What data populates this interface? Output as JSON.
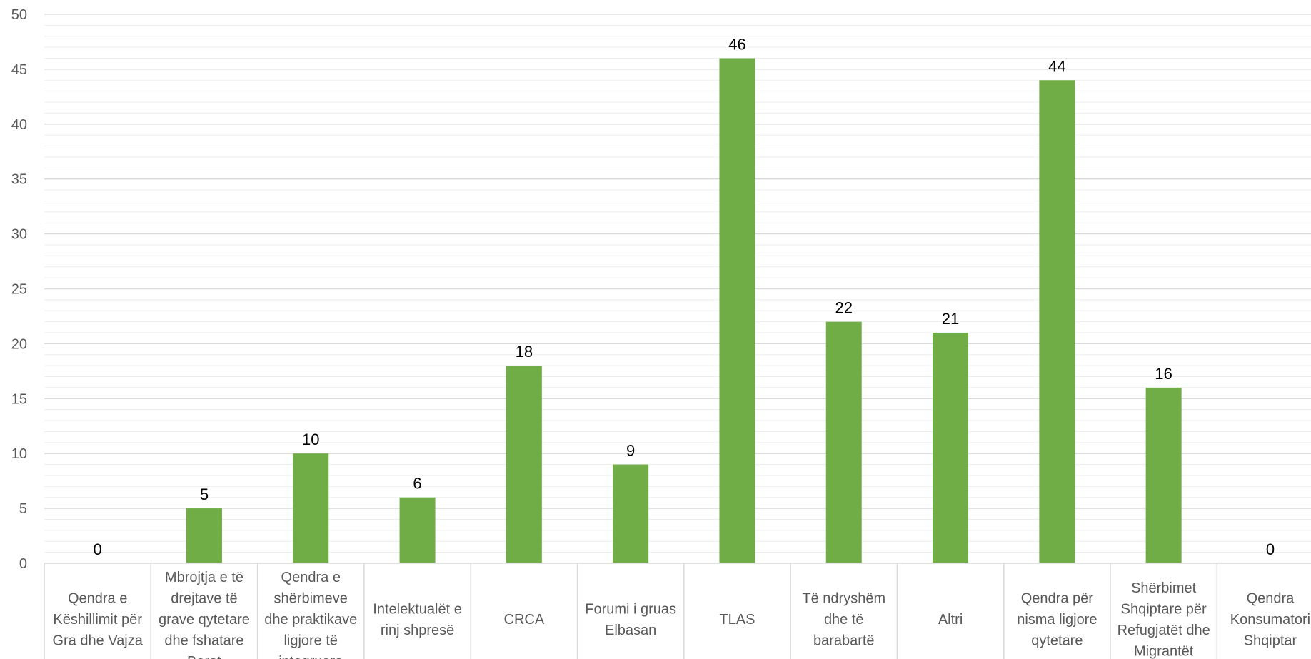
{
  "chart_data": {
    "type": "bar",
    "categories": [
      "Qendra e Këshillimit për Gra dhe Vajza",
      "Mbrojtja e të drejtave të grave qytetare dhe fshatare Berat",
      "Qendra e shërbimeve dhe praktikave ligjore të integruara",
      "Intelektualët e rinj shpresë",
      "CRCA",
      "Forumi i gruas Elbasan",
      "TLAS",
      "Të ndryshëm dhe të barabartë",
      "Altri",
      "Qendra për nisma ligjore qytetare",
      "Shërbimet Shqiptare për Refugjatët dhe Migrantët",
      "Qendra Konsumatori Shqiptar"
    ],
    "category_lines": [
      [
        "Qendra e",
        "Këshillimit për",
        "Gra dhe Vajza"
      ],
      [
        "Mbrojtja e të",
        "drejtave të",
        "grave qytetare",
        "dhe fshatare",
        "Berat"
      ],
      [
        "Qendra e",
        "shërbimeve",
        "dhe praktikave",
        "ligjore të",
        "integruara"
      ],
      [
        "Intelektualët e",
        "rinj shpresë"
      ],
      [
        "CRCA"
      ],
      [
        "Forumi i gruas",
        "Elbasan"
      ],
      [
        "TLAS"
      ],
      [
        "Të ndryshëm",
        "dhe të",
        "barabartë"
      ],
      [
        "Altri"
      ],
      [
        "Qendra për",
        "nisma ligjore",
        "qytetare"
      ],
      [
        "Shërbimet",
        "Shqiptare për",
        "Refugjatët dhe",
        "Migrantët"
      ],
      [
        "Qendra",
        "Konsumatori",
        "Shqiptar"
      ]
    ],
    "values": [
      0,
      5,
      10,
      6,
      18,
      9,
      46,
      22,
      21,
      44,
      16,
      0
    ],
    "data_labels": [
      "0",
      "5",
      "10",
      "6",
      "18",
      "9",
      "46",
      "22",
      "21",
      "44",
      "16",
      "0"
    ],
    "y_ticks": [
      0,
      5,
      10,
      15,
      20,
      25,
      30,
      35,
      40,
      45,
      50
    ],
    "ylim": [
      0,
      50
    ],
    "title": "",
    "xlabel": "",
    "ylabel": "",
    "grid": "major and minor horizontal",
    "legend": "none",
    "colors": {
      "bar": "#70AD47",
      "major_grid": "#D9D9D9",
      "minor_grid": "#EDEDED",
      "axis_line": "#D9D9D9",
      "tick_text": "#595959",
      "data_label_text": "#000000"
    }
  }
}
